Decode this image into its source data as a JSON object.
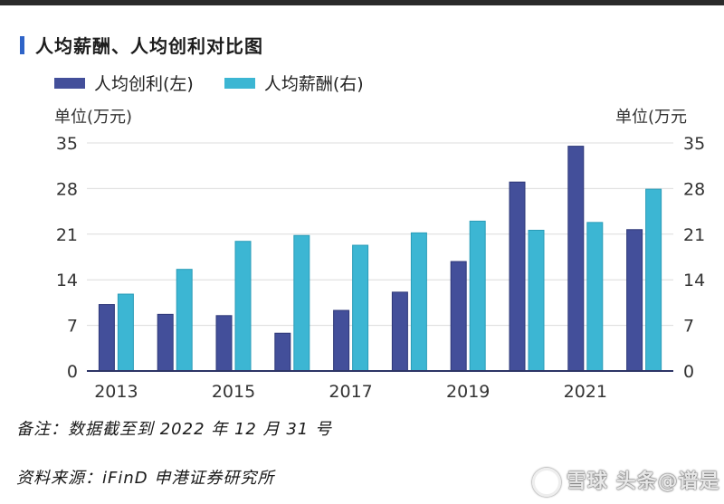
{
  "header": {
    "title": "人均薪酬、人均创利对比图"
  },
  "units": {
    "left": "单位(万元)",
    "right": "单位(万元"
  },
  "notes": {
    "note": "备注：数据截至到 2022 年 12 月 31 号",
    "source": "资料来源：iFinD 申港证券研究所"
  },
  "watermark": {
    "text": "雪球 头条@谱是"
  },
  "colors": {
    "profit": "#434f9a",
    "salary": "#3cb6d3"
  },
  "chart_data": {
    "type": "bar",
    "title": "人均薪酬、人均创利对比图",
    "categories": [
      "2013",
      "2014",
      "2015",
      "2016",
      "2017",
      "2018",
      "2019",
      "2020",
      "2021",
      "2022"
    ],
    "x_tick_labels": [
      "2013",
      "",
      "2015",
      "",
      "2017",
      "",
      "2019",
      "",
      "2021",
      ""
    ],
    "series": [
      {
        "name": "人均创利(左)",
        "axis": "left",
        "color": "#434f9a",
        "values": [
          10.2,
          8.7,
          8.5,
          5.8,
          9.3,
          12.1,
          16.8,
          29.0,
          34.5,
          21.7
        ]
      },
      {
        "name": "人均薪酬(右)",
        "axis": "right",
        "color": "#3cb6d3",
        "values": [
          11.8,
          15.6,
          19.9,
          20.8,
          19.3,
          21.2,
          23.0,
          21.6,
          22.8,
          27.9
        ]
      }
    ],
    "y_ticks_left": [
      "0",
      "7",
      "14",
      "21",
      "28",
      "35"
    ],
    "y_ticks_right": [
      "0",
      "7",
      "14",
      "21",
      "28",
      "35"
    ],
    "ylim": [
      0,
      35
    ],
    "legend_position": "top-left",
    "grid": true
  }
}
